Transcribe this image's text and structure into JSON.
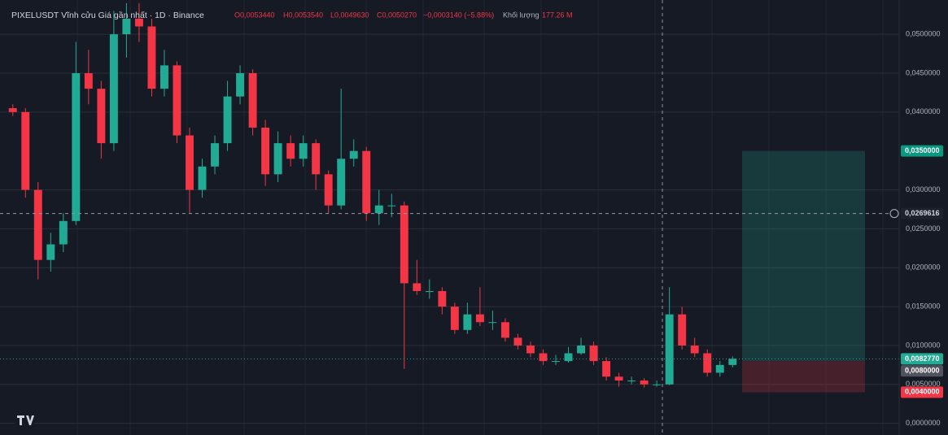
{
  "chart_data": {
    "type": "candlestick",
    "header": {
      "symbol": "PIXELUSDT Vĩnh cửu Giá gần nhất · 1D · Binance",
      "ohlc": [
        "O0,0053440",
        "H0,0053540",
        "L0,0049630",
        "C0,0050270",
        "−0,0003140 (−5.88%)"
      ],
      "volume_label": "Khối lượng",
      "volume": "177.26 M"
    },
    "up_color": "#22ab94",
    "down_color": "#f23645",
    "grid": true,
    "ylim": [
      -0.0015,
      0.0544
    ],
    "yticks": [
      {
        "value": 0,
        "label": "0,0000000"
      },
      {
        "value": 0.005,
        "label": "0,0050000"
      },
      {
        "value": 0.01,
        "label": "0,0100000"
      },
      {
        "value": 0.015,
        "label": "0,0150000"
      },
      {
        "value": 0.02,
        "label": "0,0200000"
      },
      {
        "value": 0.025,
        "label": "0,0250000"
      },
      {
        "value": 0.03,
        "label": "0,0300000"
      },
      {
        "value": 0.04,
        "label": "0,0400000"
      },
      {
        "value": 0.045,
        "label": "0,0450000"
      },
      {
        "value": 0.05,
        "label": "0,0500000"
      }
    ],
    "open": [
      0.0405,
      0.04,
      0.03,
      0.021,
      0.023,
      0.026,
      0.045,
      0.043,
      0.036,
      0.05,
      0.052,
      0.051,
      0.043,
      0.046,
      0.037,
      0.03,
      0.033,
      0.036,
      0.042,
      0.045,
      0.038,
      0.032,
      0.036,
      0.034,
      0.036,
      0.032,
      0.028,
      0.034,
      0.035,
      0.027,
      0.028,
      0.028,
      0.018,
      0.017,
      0.017,
      0.015,
      0.012,
      0.014,
      0.013,
      0.013,
      0.011,
      0.01,
      0.009,
      0.008,
      0.008,
      0.009,
      0.01,
      0.008,
      0.006,
      0.0055,
      0.0055,
      0.005,
      0.005,
      0.014,
      0.01,
      0.009,
      0.0065,
      0.0075
    ],
    "high": [
      0.041,
      0.0405,
      0.031,
      0.0245,
      0.027,
      0.049,
      0.048,
      0.044,
      0.053,
      0.054,
      0.054,
      0.052,
      0.048,
      0.0465,
      0.038,
      0.034,
      0.037,
      0.044,
      0.046,
      0.0455,
      0.039,
      0.0375,
      0.037,
      0.037,
      0.0365,
      0.0325,
      0.043,
      0.0365,
      0.0355,
      0.03,
      0.0295,
      0.0285,
      0.021,
      0.0185,
      0.0175,
      0.0155,
      0.0155,
      0.0175,
      0.0145,
      0.0135,
      0.0115,
      0.0105,
      0.0095,
      0.0088,
      0.0098,
      0.011,
      0.0105,
      0.0085,
      0.0065,
      0.006,
      0.0058,
      0.0055,
      0.0175,
      0.015,
      0.011,
      0.0095,
      0.008,
      0.0086
    ],
    "low": [
      0.0395,
      0.029,
      0.0185,
      0.0195,
      0.022,
      0.0255,
      0.041,
      0.034,
      0.035,
      0.047,
      0.049,
      0.042,
      0.042,
      0.036,
      0.027,
      0.029,
      0.032,
      0.035,
      0.041,
      0.037,
      0.0305,
      0.031,
      0.033,
      0.033,
      0.03,
      0.027,
      0.0275,
      0.033,
      0.026,
      0.0255,
      0.0265,
      0.007,
      0.0165,
      0.016,
      0.014,
      0.0115,
      0.0115,
      0.0125,
      0.012,
      0.0105,
      0.0095,
      0.0085,
      0.0075,
      0.0075,
      0.0078,
      0.0088,
      0.0075,
      0.0055,
      0.0047,
      0.005,
      0.0046,
      0.0047,
      0.0049,
      0.0095,
      0.0085,
      0.006,
      0.006,
      0.0072
    ],
    "close": [
      0.04,
      0.03,
      0.021,
      0.023,
      0.026,
      0.045,
      0.043,
      0.036,
      0.05,
      0.052,
      0.051,
      0.043,
      0.046,
      0.037,
      0.03,
      0.033,
      0.036,
      0.042,
      0.045,
      0.038,
      0.032,
      0.036,
      0.034,
      0.036,
      0.032,
      0.028,
      0.034,
      0.035,
      0.027,
      0.028,
      0.028,
      0.018,
      0.017,
      0.017,
      0.015,
      0.012,
      0.014,
      0.013,
      0.013,
      0.011,
      0.01,
      0.009,
      0.008,
      0.008,
      0.009,
      0.01,
      0.008,
      0.006,
      0.0055,
      0.0055,
      0.005,
      0.005,
      0.014,
      0.01,
      0.009,
      0.0065,
      0.0075,
      0.0083
    ],
    "position": {
      "target": {
        "value": 0.035,
        "label": "0,0350000"
      },
      "entry": {
        "value": 0.008,
        "label": "0,0080000"
      },
      "stop": {
        "value": 0.004,
        "label": "0,0040000"
      }
    },
    "last_price": {
      "value": 0.008277,
      "label": "0,0082770"
    },
    "crosshair_price": {
      "value": 0.0269616,
      "label": "0,0269616"
    }
  }
}
